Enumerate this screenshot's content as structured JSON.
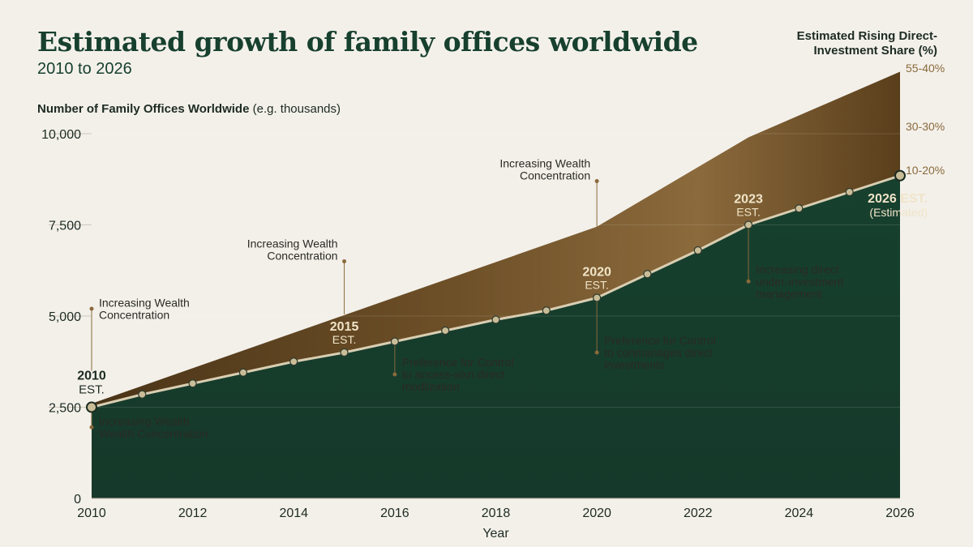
{
  "header": {
    "title": "Estimated growth of family offices worldwide",
    "subtitle": "2010 to 2026",
    "yaxis_title_main": "Number of Family Offices  Worldwide",
    "yaxis_title_unit": " (e.g. thousands)",
    "right_axis_title": "Estimated Rising Direct-Investment Share (%)"
  },
  "colors": {
    "background": "#f3f0ea",
    "area_dark": "#15392a",
    "band_light": "#8b6a3c",
    "band_dark": "#4a3417",
    "line": "#d9ceb2",
    "marker_fill": "#c9bd98",
    "accent": "#8a6a3a",
    "label_gold": "#f0e4c8"
  },
  "chart_data": {
    "type": "area",
    "xlabel": "Year",
    "x_ticks": [
      2010,
      2012,
      2014,
      2016,
      2018,
      2020,
      2022,
      2024,
      2026
    ],
    "y_ticks": [
      {
        "value": 0,
        "label": "0"
      },
      {
        "value": 2500,
        "label": "2,500"
      },
      {
        "value": 5000,
        "label": "5,000"
      },
      {
        "value": 7500,
        "label": "7,500"
      },
      {
        "value": 10000,
        "label": "10,000"
      }
    ],
    "xlim": [
      2010,
      2026
    ],
    "ylim": [
      0,
      10000
    ],
    "grid": true,
    "right_axis_labels": [
      {
        "label": "55-40%",
        "y_value": 11800
      },
      {
        "label": "30-30%",
        "y_value": 10200
      },
      {
        "label": "10-20%",
        "y_value": 9000
      }
    ],
    "series": [
      {
        "role": "family_offices",
        "x": [
          2010,
          2011,
          2012,
          2013,
          2014,
          2015,
          2016,
          2017,
          2018,
          2019,
          2020,
          2021,
          2022,
          2023,
          2024,
          2025,
          2026
        ],
        "values": [
          2500,
          2850,
          3150,
          3450,
          3750,
          4000,
          4300,
          4600,
          4900,
          5150,
          5500,
          6150,
          6800,
          7500,
          7950,
          8400,
          8850
        ]
      },
      {
        "role": "direct_investment_band",
        "x": [
          2010,
          2020,
          2023,
          2026
        ],
        "values": [
          2600,
          7450,
          9900,
          11700
        ]
      }
    ],
    "milestones": [
      {
        "year": 2010,
        "value": 2500,
        "year_label": "2010",
        "sub_label": "EST."
      },
      {
        "year": 2015,
        "value": 4000,
        "year_label": "2015",
        "sub_label": "EST."
      },
      {
        "year": 2020,
        "value": 5500,
        "year_label": "2020",
        "sub_label": "EST."
      },
      {
        "year": 2023,
        "value": 7500,
        "year_label": "2023",
        "sub_label": "EST."
      },
      {
        "year": 2026,
        "value": 8850,
        "year_label": "2026 EST.",
        "sub_label": "(Estimated)"
      }
    ],
    "annotations": [
      {
        "lines": [
          "Increasing Wealth",
          "Concentration"
        ],
        "x": 2010,
        "y": 5200,
        "anchor_y": 3500,
        "side": "right"
      },
      {
        "lines": [
          "Increasing Wealth",
          "Wealth Concentration"
        ],
        "x": 2010,
        "y": 1950,
        "anchor_y": 2500,
        "side": "right"
      },
      {
        "lines": [
          "Increasing Wealth",
          "Concentration"
        ],
        "x": 2015,
        "y": 6500,
        "anchor_y": 5050,
        "side": "left"
      },
      {
        "lines": [
          "Preference for Control",
          "to access-sixn direct",
          "modiization"
        ],
        "x": 2016,
        "y": 3400,
        "anchor_y": 4300,
        "side": "right"
      },
      {
        "lines": [
          "Increasing Wealth",
          "Concentration"
        ],
        "x": 2020,
        "y": 8700,
        "anchor_y": 7450,
        "side": "left"
      },
      {
        "lines": [
          "Preference for Control",
          "to conmanages direct",
          "investments"
        ],
        "x": 2020,
        "y": 4000,
        "anchor_y": 5500,
        "side": "right"
      },
      {
        "lines": [
          "Increasing direct",
          "under-investment",
          "management"
        ],
        "x": 2023,
        "y": 5950,
        "anchor_y": 7500,
        "side": "right"
      }
    ]
  }
}
